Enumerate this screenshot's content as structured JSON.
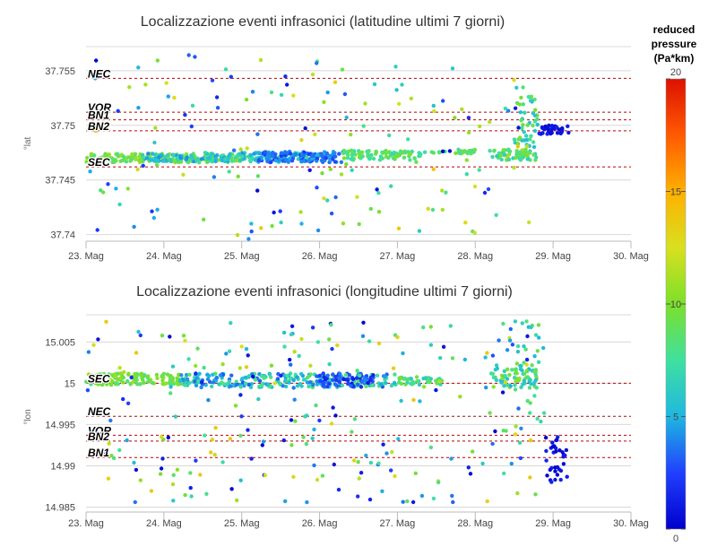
{
  "colorbar": {
    "title_lines": [
      "reduced",
      "pressure",
      "(Pa*km)"
    ],
    "min": 0,
    "max": 20,
    "ticks": [
      0,
      5,
      10,
      15,
      20
    ],
    "colors": [
      "#0000cc",
      "#2040ff",
      "#1fb8e0",
      "#3fe0a0",
      "#7ce02a",
      "#d8e020",
      "#ffb000",
      "#ff5a00",
      "#dd1100"
    ]
  },
  "chart_data": [
    {
      "type": "scatter",
      "title": "Localizzazione eventi infrasonici (latitudine ultimi 7 giorni)",
      "xlabel": "",
      "ylabel": "°lat",
      "x_categories": [
        "23. Mag",
        "24. Mag",
        "25. Mag",
        "26. Mag",
        "27. Mag",
        "28. Mag",
        "29. Mag",
        "30. Mag"
      ],
      "xlim": [
        "23. Mag",
        "30. Mag"
      ],
      "ylim": [
        37.7394,
        37.7572
      ],
      "y_ticks": [
        37.74,
        37.745,
        37.75,
        37.755
      ],
      "grid": true,
      "reference_lines": [
        {
          "name": "NEC",
          "y": 37.7543
        },
        {
          "name": "VOR",
          "y": 37.7512
        },
        {
          "name": "BN1",
          "y": 37.7505
        },
        {
          "name": "BN2",
          "y": 37.7495
        },
        {
          "name": "SEC",
          "y": 37.7462
        }
      ],
      "clusters": [
        {
          "x": [
            0.0,
            2.0
          ],
          "y": [
            37.7466,
            37.7474
          ],
          "c": [
            8,
            11
          ],
          "n": 170
        },
        {
          "x": [
            0.7,
            3.0
          ],
          "y": [
            37.7467,
            37.7475
          ],
          "c": [
            4,
            8
          ],
          "n": 200
        },
        {
          "x": [
            2.2,
            3.3
          ],
          "y": [
            37.7466,
            37.7476
          ],
          "c": [
            2,
            5
          ],
          "n": 130
        },
        {
          "x": [
            3.3,
            4.3
          ],
          "y": [
            37.7468,
            37.7477
          ],
          "c": [
            7,
            10
          ],
          "n": 90
        },
        {
          "x": [
            4.3,
            5.0
          ],
          "y": [
            37.7474,
            37.7478
          ],
          "c": [
            7,
            10
          ],
          "n": 28
        },
        {
          "x": [
            5.2,
            5.8
          ],
          "y": [
            37.7468,
            37.7478
          ],
          "c": [
            6,
            11
          ],
          "n": 60
        },
        {
          "x": [
            5.5,
            5.8
          ],
          "y": [
            37.748,
            37.7535
          ],
          "c": [
            5,
            10
          ],
          "n": 45
        },
        {
          "x": [
            5.8,
            6.2
          ],
          "y": [
            37.7492,
            37.75
          ],
          "c": [
            0,
            1.5
          ],
          "n": 34
        },
        {
          "x": [
            0.0,
            5.8
          ],
          "y": [
            37.7395,
            37.7565
          ],
          "c": [
            0,
            14
          ],
          "n": 160
        }
      ]
    },
    {
      "type": "scatter",
      "title": "Localizzazione eventi infrasonici (longitudine ultimi 7 giorni)",
      "xlabel": "",
      "ylabel": "°lon",
      "x_categories": [
        "23. Mag",
        "24. Mag",
        "25. Mag",
        "26. Mag",
        "27. Mag",
        "28. Mag",
        "29. Mag",
        "30. Mag"
      ],
      "xlim": [
        "23. Mag",
        "30. Mag"
      ],
      "ylim": [
        14.9844,
        15.0083
      ],
      "y_ticks": [
        14.985,
        14.99,
        14.995,
        15.0,
        15.005
      ],
      "y_tick_labels": [
        "14.985",
        "14.99",
        "14.995",
        "15",
        "15.005"
      ],
      "grid": true,
      "reference_lines": [
        {
          "name": "SEC",
          "y": 15.0
        },
        {
          "name": "NEC",
          "y": 14.996
        },
        {
          "name": "VOR",
          "y": 14.9937
        },
        {
          "name": "BN2",
          "y": 14.993
        },
        {
          "name": "BN1",
          "y": 14.991
        }
      ],
      "clusters": [
        {
          "x": [
            0.0,
            1.2
          ],
          "y": [
            14.9998,
            15.0012
          ],
          "c": [
            8,
            11
          ],
          "n": 120
        },
        {
          "x": [
            1.2,
            4.0
          ],
          "y": [
            14.9995,
            15.0012
          ],
          "c": [
            3,
            9
          ],
          "n": 240
        },
        {
          "x": [
            3.0,
            3.7
          ],
          "y": [
            14.9995,
            15.0012
          ],
          "c": [
            1,
            4
          ],
          "n": 60
        },
        {
          "x": [
            4.0,
            4.6
          ],
          "y": [
            14.9998,
            15.0008
          ],
          "c": [
            6,
            10
          ],
          "n": 40
        },
        {
          "x": [
            5.2,
            5.8
          ],
          "y": [
            14.9995,
            15.0018
          ],
          "c": [
            5,
            11
          ],
          "n": 60
        },
        {
          "x": [
            5.5,
            5.9
          ],
          "y": [
            14.995,
            15.0075
          ],
          "c": [
            5,
            10
          ],
          "n": 40
        },
        {
          "x": [
            5.9,
            6.2
          ],
          "y": [
            14.988,
            14.9935
          ],
          "c": [
            0,
            1.5
          ],
          "n": 34
        },
        {
          "x": [
            0.0,
            5.8
          ],
          "y": [
            14.9855,
            15.0075
          ],
          "c": [
            0,
            14
          ],
          "n": 240
        }
      ]
    }
  ]
}
